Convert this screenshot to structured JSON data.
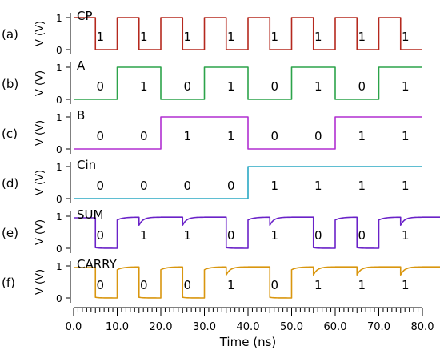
{
  "chart_data": {
    "type": "line",
    "xlabel": "Time (ns)",
    "xlim": [
      0,
      80
    ],
    "x_ticks": [
      "0.0",
      "10.0",
      "20.0",
      "30.0",
      "40.0",
      "50.0",
      "60.0",
      "70.0",
      "80.0"
    ],
    "panels": [
      {
        "id": "a",
        "panel_label": "(a)",
        "signal": "CP",
        "ylabel": "V (V)",
        "y_ticks": [
          "1",
          "0"
        ],
        "color": "#b5291e",
        "shape": "square",
        "bits": [
          "1",
          "1",
          "1",
          "1",
          "1",
          "1",
          "1",
          "1"
        ],
        "edges": [
          0,
          5,
          10,
          15,
          20,
          25,
          30,
          35,
          40,
          45,
          50,
          55,
          60,
          65,
          70,
          75,
          80
        ],
        "levels": [
          1,
          0,
          1,
          0,
          1,
          0,
          1,
          0,
          1,
          0,
          1,
          0,
          1,
          0,
          1,
          0
        ]
      },
      {
        "id": "b",
        "panel_label": "(b)",
        "signal": "A",
        "ylabel": "V (V)",
        "y_ticks": [
          "1",
          "0"
        ],
        "color": "#2ca34a",
        "shape": "square",
        "bits": [
          "0",
          "1",
          "0",
          "1",
          "0",
          "1",
          "0",
          "1"
        ],
        "edges": [
          0,
          10,
          20,
          30,
          40,
          50,
          60,
          70,
          80
        ],
        "levels": [
          0,
          1,
          0,
          1,
          0,
          1,
          0,
          1
        ]
      },
      {
        "id": "c",
        "panel_label": "(c)",
        "signal": "B",
        "ylabel": "V (V)",
        "y_ticks": [
          "1",
          "0"
        ],
        "color": "#b02fd1",
        "shape": "square",
        "bits": [
          "0",
          "0",
          "1",
          "1",
          "0",
          "0",
          "1",
          "1"
        ],
        "edges": [
          0,
          20,
          40,
          60,
          80
        ],
        "levels": [
          0,
          1,
          0,
          1
        ]
      },
      {
        "id": "d",
        "panel_label": "(d)",
        "signal": "Cin",
        "ylabel": "V (V)",
        "y_ticks": [
          "1",
          "0"
        ],
        "color": "#2aa8c4",
        "shape": "square",
        "bits": [
          "0",
          "0",
          "0",
          "0",
          "1",
          "1",
          "1",
          "1"
        ],
        "edges": [
          0,
          40,
          80
        ],
        "levels": [
          0,
          1
        ]
      },
      {
        "id": "e",
        "panel_label": "(e)",
        "signal": "SUM",
        "ylabel": "V (V)",
        "y_ticks": [
          "1",
          "0"
        ],
        "color": "#6a22c8",
        "shape": "rc",
        "bits": [
          "0",
          "1",
          "1",
          "0",
          "1",
          "0",
          "0",
          "1"
        ],
        "hold_high": [
          0,
          5
        ],
        "eval_start": 5,
        "bit_period": 10
      },
      {
        "id": "f",
        "panel_label": "(f)",
        "signal": "CARRY",
        "ylabel": "V (V)",
        "y_ticks": [
          "1",
          "0"
        ],
        "color": "#d9960f",
        "shape": "rc",
        "bits": [
          "0",
          "0",
          "0",
          "1",
          "0",
          "1",
          "1",
          "1"
        ],
        "hold_high": [
          0,
          5
        ],
        "eval_start": 5,
        "bit_period": 10
      }
    ]
  }
}
